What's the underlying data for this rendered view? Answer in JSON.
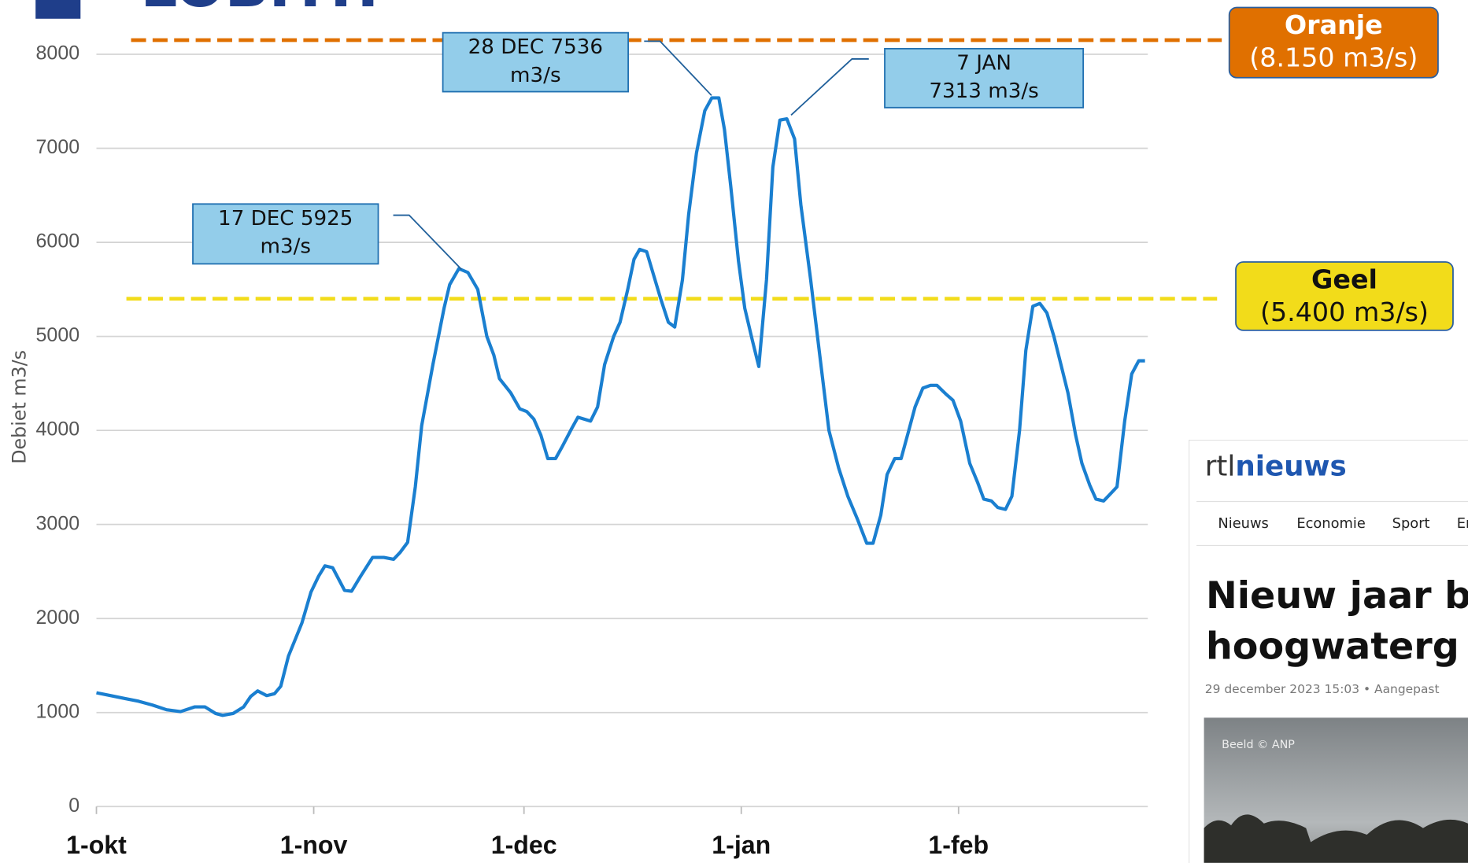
{
  "chart_data": {
    "type": "line",
    "title": "LOBITH",
    "y_label": "Debiet m3/s",
    "xlim": [
      0,
      150
    ],
    "ylim": [
      0,
      8000
    ],
    "xticks": [
      {
        "value": 0,
        "label": "1-okt"
      },
      {
        "value": 31,
        "label": "1-nov"
      },
      {
        "value": 61,
        "label": "1-dec"
      },
      {
        "value": 92,
        "label": "1-jan"
      },
      {
        "value": 123,
        "label": "1-feb"
      }
    ],
    "yticks": [
      0,
      1000,
      2000,
      3000,
      4000,
      5000,
      6000,
      7000,
      8000
    ],
    "grid": true,
    "series": [
      {
        "color": "#1a7fd0",
        "x": [
          0,
          2,
          4,
          6,
          8,
          10,
          12,
          14,
          15.5,
          17,
          18,
          19.5,
          21,
          22,
          23,
          24.3,
          25.4,
          26.3,
          27.4,
          29.3,
          30.6,
          31.7,
          32.6,
          33.7,
          35.4,
          36.4,
          37.7,
          39.4,
          41,
          42.4,
          43.3,
          44.4,
          45.5,
          46.4,
          48,
          49.6,
          50.4,
          51.7,
          53,
          54.4,
          55.7,
          56.7,
          57.5,
          59.1,
          60.4,
          61.4,
          62.4,
          63.4,
          64.4,
          65.5,
          66.4,
          67.8,
          68.7,
          70.5,
          71.5,
          72.5,
          73.8,
          74.7,
          75.8,
          76.7,
          77.5,
          78.5,
          79.5,
          80.5,
          81.6,
          82.5,
          83.6,
          84.5,
          85.6,
          86.8,
          87.8,
          88.8,
          89.6,
          90.5,
          91.6,
          92.5,
          93.6,
          94.5,
          95.6,
          96.5,
          97.5,
          98.5,
          99.6,
          100.5,
          101.9,
          103.2,
          104.5,
          105.9,
          107.2,
          108.6,
          109.9,
          110.8,
          111.9,
          112.8,
          113.9,
          114.8,
          115.9,
          116.8,
          117.9,
          119,
          119.9,
          121.3,
          122.2,
          123.3,
          124.6,
          125.7,
          126.6,
          127.7,
          128.6,
          129.7,
          130.6,
          131.7,
          132.6,
          133.6,
          134.6,
          135.6,
          136.6,
          137.6,
          138.6,
          139.7,
          140.6,
          141.7,
          142.6,
          143.7,
          144.6,
          145.6,
          146.7,
          147.7,
          148.7,
          149.6
        ],
        "values": [
          1210,
          1180,
          1150,
          1120,
          1080,
          1030,
          1010,
          1060,
          1060,
          990,
          970,
          990,
          1060,
          1170,
          1230,
          1180,
          1200,
          1280,
          1600,
          1950,
          2280,
          2450,
          2560,
          2540,
          2300,
          2290,
          2450,
          2650,
          2650,
          2630,
          2700,
          2810,
          3400,
          4050,
          4700,
          5300,
          5550,
          5720,
          5680,
          5500,
          5000,
          4800,
          4550,
          4400,
          4230,
          4200,
          4120,
          3950,
          3700,
          3700,
          3820,
          4020,
          4140,
          4100,
          4250,
          4700,
          5000,
          5150,
          5500,
          5820,
          5925,
          5900,
          5650,
          5400,
          5150,
          5100,
          5600,
          6300,
          6950,
          7400,
          7536,
          7536,
          7200,
          6600,
          5800,
          5300,
          4950,
          4680,
          5600,
          6800,
          7300,
          7313,
          7100,
          6400,
          5600,
          4800,
          4000,
          3600,
          3300,
          3050,
          2800,
          2800,
          3100,
          3530,
          3700,
          3700,
          4000,
          4250,
          4450,
          4480,
          4480,
          4380,
          4320,
          4100,
          3650,
          3450,
          3270,
          3250,
          3180,
          3160,
          3300,
          4000,
          4850,
          5320,
          5350,
          5250,
          5000,
          4700,
          4400,
          3950,
          3650,
          3420,
          3270,
          3250,
          3320,
          3400,
          4100,
          4600,
          4740,
          4740
        ]
      }
    ],
    "thresholds": [
      {
        "name": "Oranje",
        "label": "(8.150 m3/s)",
        "value": 8150,
        "color": "#e07000"
      },
      {
        "name": "Geel",
        "label": "(5.400 m3/s)",
        "value": 5400,
        "color": "#f2dc1a"
      }
    ],
    "annotations": [
      {
        "lines": [
          "17 DEC 5925",
          "m3/s"
        ]
      },
      {
        "lines": [
          "28 DEC 7536",
          "m3/s"
        ]
      },
      {
        "lines": [
          "7 JAN",
          "7313 m3/s"
        ]
      }
    ]
  },
  "news_inset": {
    "logo_prefix": "rtl",
    "logo_main": "nieuws",
    "nav": [
      "Nieuws",
      "Economie",
      "Sport",
      "En"
    ],
    "headline": [
      "Nieuw jaar b",
      "hoogwaterg"
    ],
    "meta": "29 december 2023 15:03  •  Aangepast",
    "image_credit": "Beeld © ANP"
  }
}
